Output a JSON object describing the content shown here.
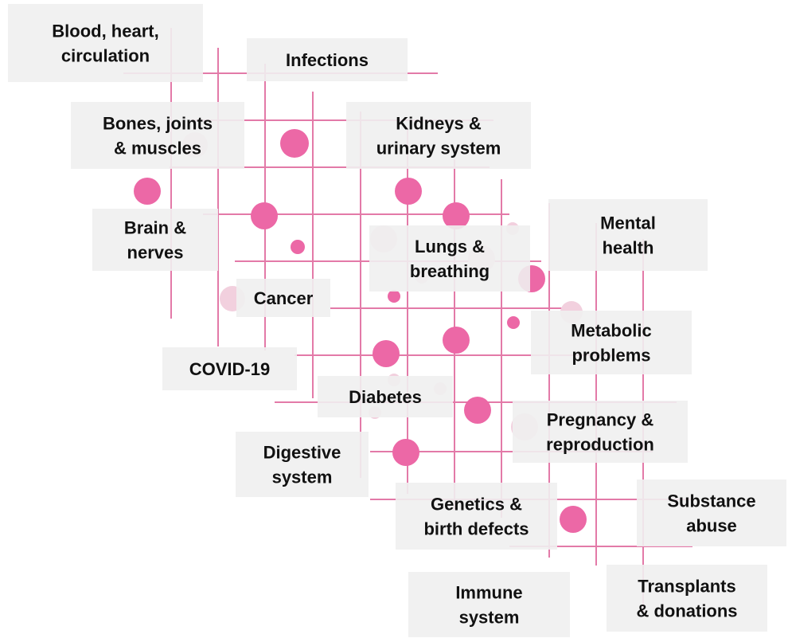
{
  "topics": [
    {
      "label": "Blood, heart,\ncirculation"
    },
    {
      "label": "Infections"
    },
    {
      "label": "Bones, joints\n& muscles"
    },
    {
      "label": "Kidneys &\nurinary system"
    },
    {
      "label": "Brain &\nnerves"
    },
    {
      "label": "Mental\nhealth"
    },
    {
      "label": "Lungs &\nbreathing"
    },
    {
      "label": "Cancer"
    },
    {
      "label": "Metabolic\nproblems"
    },
    {
      "label": "COVID-19"
    },
    {
      "label": "Diabetes"
    },
    {
      "label": "Pregnancy &\nreproduction"
    },
    {
      "label": "Digestive\nsystem"
    },
    {
      "label": "Genetics &\nbirth defects"
    },
    {
      "label": "Substance\nabuse"
    },
    {
      "label": "Transplants\n& donations"
    },
    {
      "label": "Immune\nsystem"
    }
  ]
}
